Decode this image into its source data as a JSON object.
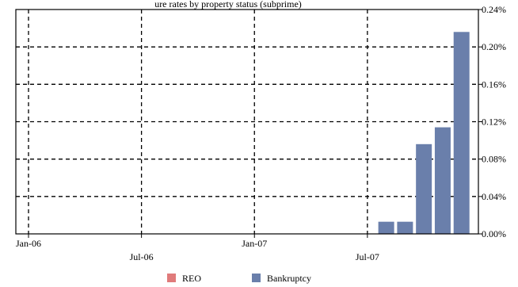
{
  "chart_data": {
    "type": "bar",
    "title": "ure rates by property status (subprime)",
    "x_ticks": [
      "Jan-06",
      "Jul-06",
      "Jan-07",
      "Jul-07"
    ],
    "y_ticks": [
      "0.00%",
      "0.04%",
      "0.08%",
      "0.12%",
      "0.16%",
      "0.20%",
      "0.24%"
    ],
    "ylim": [
      0,
      0.24
    ],
    "y_axis_side": "right",
    "grid": "dashed",
    "legend_placement": "bottom",
    "series": [
      {
        "name": "REO",
        "color": "#e07b7b",
        "values": [
          {
            "x": "2007-08",
            "y": 0
          },
          {
            "x": "2007-09",
            "y": 0
          },
          {
            "x": "2007-10",
            "y": 0
          },
          {
            "x": "2007-11",
            "y": 0
          },
          {
            "x": "2007-12",
            "y": 0
          }
        ]
      },
      {
        "name": "Bankruptcy",
        "color": "#6a7fab",
        "values": [
          {
            "x": "2007-08",
            "y": 0.013
          },
          {
            "x": "2007-09",
            "y": 0.013
          },
          {
            "x": "2007-10",
            "y": 0.096
          },
          {
            "x": "2007-11",
            "y": 0.114
          },
          {
            "x": "2007-12",
            "y": 0.216
          }
        ]
      }
    ]
  }
}
